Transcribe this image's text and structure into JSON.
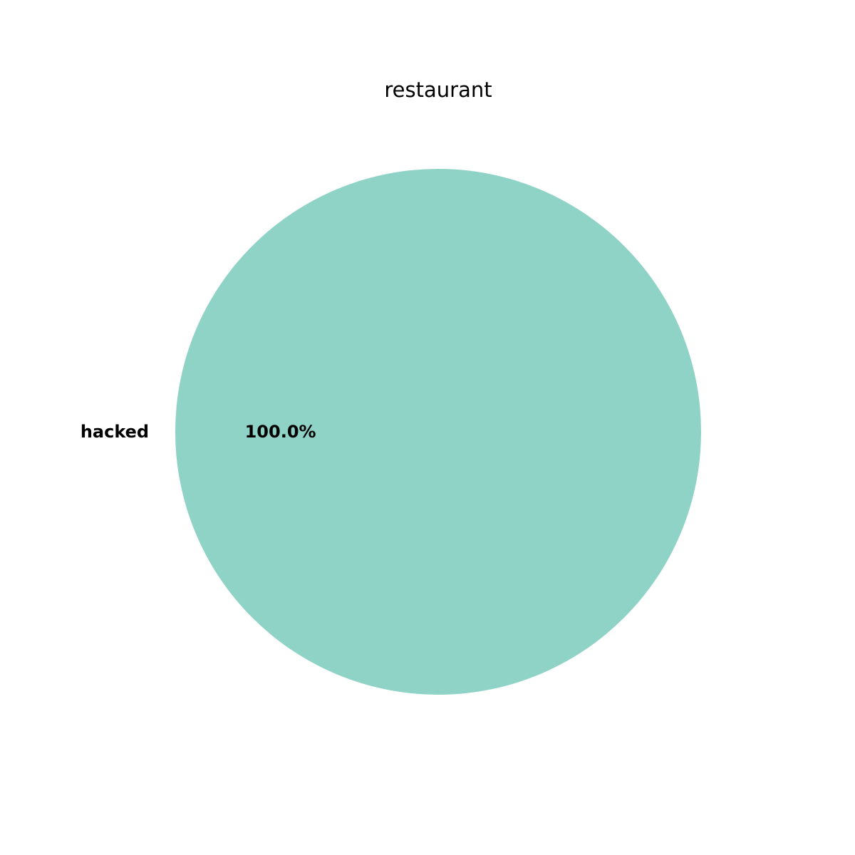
{
  "chart_data": {
    "type": "pie",
    "title": "restaurant",
    "slices": [
      {
        "label": "hacked",
        "value": 100.0,
        "percent_label": "100.0%",
        "color": "#8fd3c7"
      }
    ]
  }
}
